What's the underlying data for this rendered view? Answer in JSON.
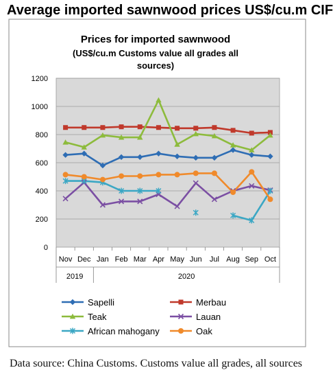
{
  "heading": "Average imported sawnwood prices US$/cu.m CIF",
  "footer": "Data source: China Customs. Customs value all grades, all sources",
  "chart_data": {
    "type": "line",
    "title": "Prices for imported sawnwood",
    "subtitle_line1": "(US$/cu.m Customs value all grades all",
    "subtitle_line2": "sources)",
    "categories": [
      "Nov",
      "Dec",
      "Jan",
      "Feb",
      "Mar",
      "Apr",
      "May",
      "Jun",
      "Jul",
      "Aug",
      "Sep",
      "Oct"
    ],
    "year_labels": [
      {
        "label": "2019",
        "from": 0,
        "to": 1
      },
      {
        "label": "2020",
        "from": 2,
        "to": 11
      }
    ],
    "ylim": [
      0,
      1200
    ],
    "yticks": [
      0,
      200,
      400,
      600,
      800,
      1000,
      1200
    ],
    "grid": true,
    "legend_position": "bottom",
    "series": [
      {
        "name": "Sapelli",
        "color": "#2e6db4",
        "marker": "diamond",
        "values": [
          655,
          665,
          580,
          640,
          640,
          665,
          645,
          635,
          635,
          690,
          655,
          645
        ]
      },
      {
        "name": "Merbau",
        "color": "#c0392b",
        "marker": "square",
        "values": [
          850,
          850,
          850,
          855,
          855,
          850,
          845,
          845,
          850,
          830,
          810,
          815
        ]
      },
      {
        "name": "Teak",
        "color": "#8dbb3c",
        "marker": "triangle",
        "values": [
          745,
          710,
          795,
          780,
          780,
          1045,
          730,
          805,
          790,
          725,
          690,
          795
        ]
      },
      {
        "name": "Lauan",
        "color": "#7b4fa3",
        "marker": "x",
        "values": [
          345,
          460,
          300,
          325,
          325,
          375,
          290,
          455,
          340,
          400,
          435,
          405
        ]
      },
      {
        "name": "African mahogany",
        "color": "#3ba7c4",
        "marker": "star",
        "values": [
          470,
          470,
          460,
          400,
          400,
          400,
          null,
          245,
          null,
          225,
          190,
          400
        ]
      },
      {
        "name": "Oak",
        "color": "#f08a2b",
        "marker": "circle",
        "values": [
          515,
          500,
          480,
          505,
          505,
          515,
          515,
          525,
          525,
          390,
          535,
          340
        ]
      }
    ]
  }
}
